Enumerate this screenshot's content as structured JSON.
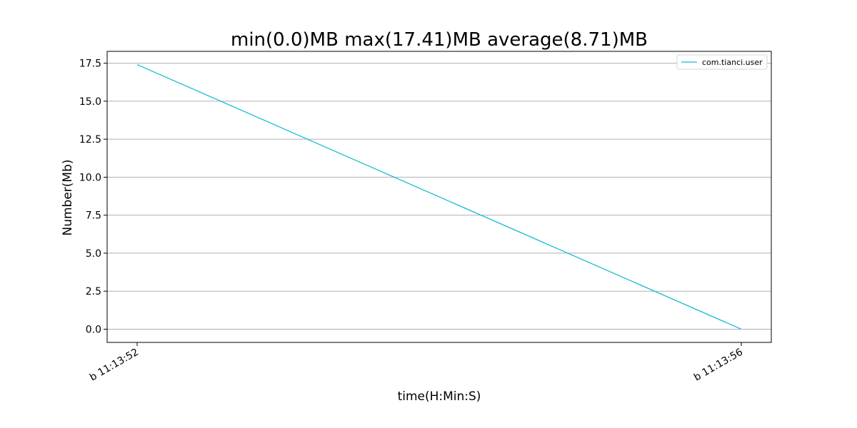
{
  "chart_data": {
    "type": "line",
    "title": "min(0.0)MB max(17.41)MB average(8.71)MB",
    "xlabel": "time(H:Min:S)",
    "ylabel": "Number(Mb)",
    "x": [
      "b 11:13:52",
      "b 11:13:56"
    ],
    "series": [
      {
        "name": "com.tianci.user",
        "color": "#17becf",
        "values": [
          17.41,
          0.0
        ]
      }
    ],
    "ylim": [
      -0.87,
      18.28
    ],
    "yticks": [
      0.0,
      2.5,
      5.0,
      7.5,
      10.0,
      12.5,
      15.0,
      17.5
    ],
    "ytick_labels": [
      "0.0",
      "2.5",
      "5.0",
      "7.5",
      "10.0",
      "12.5",
      "15.0",
      "17.5"
    ],
    "grid": "y",
    "legend_position": "top-right"
  }
}
